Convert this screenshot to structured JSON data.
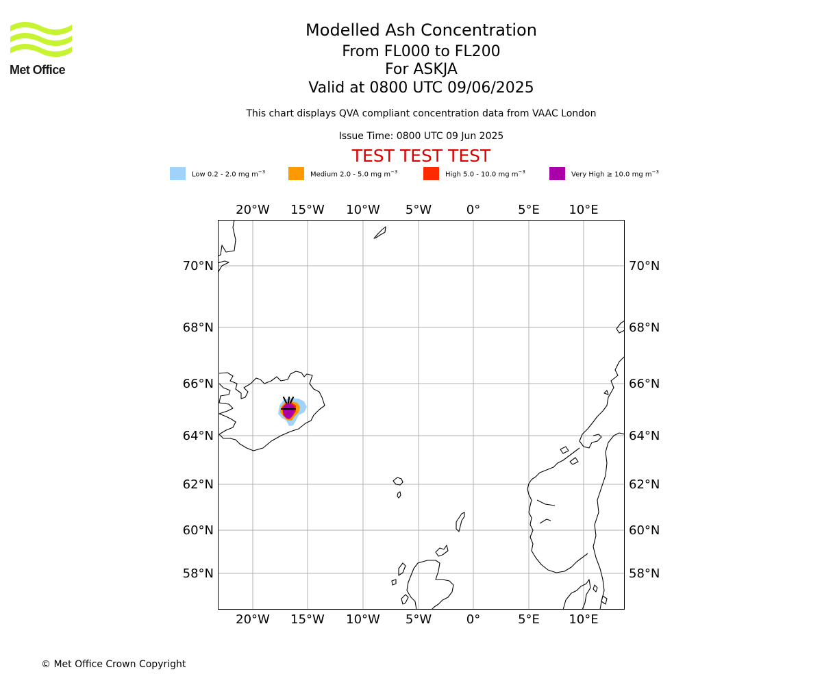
{
  "logo": {
    "text": "Met Office",
    "color": "#c6f431"
  },
  "header": {
    "title": "Modelled Ash Concentration",
    "flight_levels": "From FL000 to FL200",
    "volcano": "For ASKJA",
    "valid_time": "Valid at 0800 UTC 09/06/2025",
    "description": "This chart displays QVA compliant concentration data from VAAC London",
    "issue_time": "Issue Time: 0800 UTC 09 Jun 2025",
    "test_banner": "TEST TEST TEST"
  },
  "legend": [
    {
      "label": "Low 0.2 - 2.0 mg m",
      "color": "#9fd3fb"
    },
    {
      "label": "Medium 2.0 - 5.0 mg m",
      "color": "#ff9900"
    },
    {
      "label": "High 5.0 - 10.0 mg m",
      "color": "#ff2a00"
    },
    {
      "label": "Very High ≥ 10.0 mg m",
      "color": "#aa00aa"
    }
  ],
  "legend_unit_exponent": "−3",
  "map": {
    "longitude_ticks": [
      "20°W",
      "15°W",
      "10°W",
      "5°W",
      "0°",
      "5°E",
      "10°E"
    ],
    "latitude_ticks": [
      "70°N",
      "68°N",
      "66°N",
      "64°N",
      "62°N",
      "60°N",
      "58°N"
    ],
    "volcano_marker": "volcano-icon"
  },
  "footer": {
    "copyright": "© Met Office Crown Copyright"
  }
}
